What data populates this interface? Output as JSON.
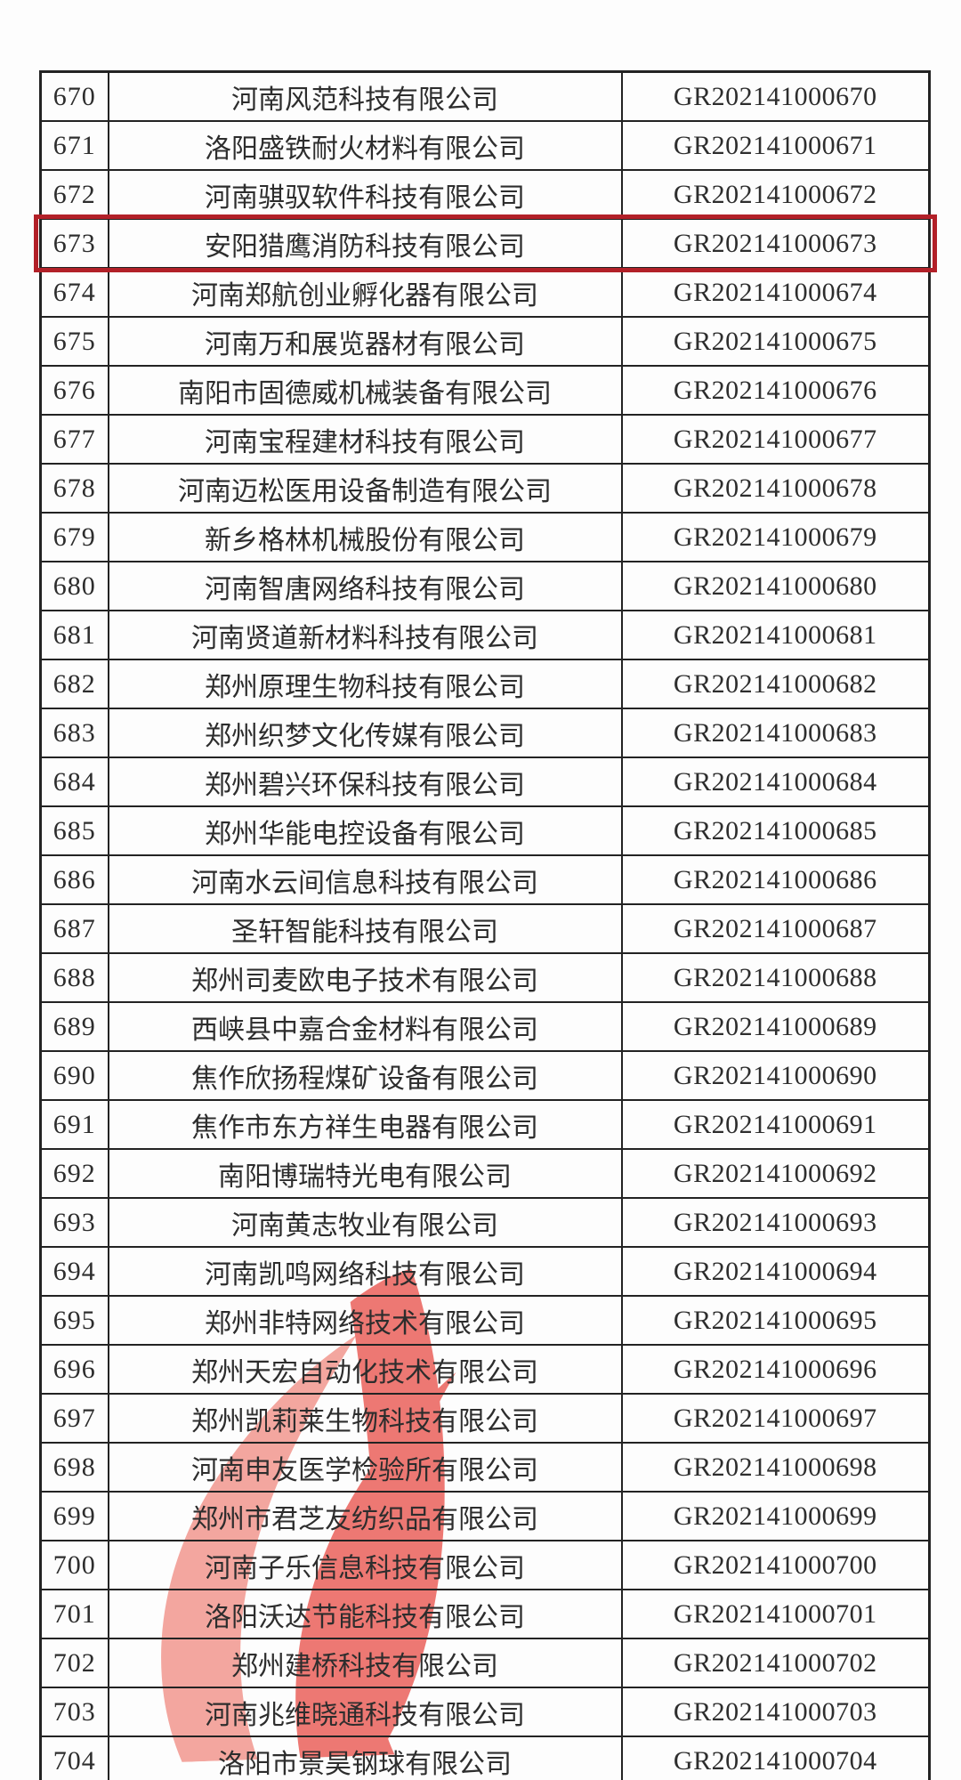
{
  "table": {
    "columns": [
      "index",
      "company",
      "certificate_no"
    ],
    "rows": [
      {
        "index": "670",
        "company": "河南风范科技有限公司",
        "cert": "GR202141000670"
      },
      {
        "index": "671",
        "company": "洛阳盛铁耐火材料有限公司",
        "cert": "GR202141000671"
      },
      {
        "index": "672",
        "company": "河南骐驭软件科技有限公司",
        "cert": "GR202141000672"
      },
      {
        "index": "673",
        "company": "安阳猎鹰消防科技有限公司",
        "cert": "GR202141000673"
      },
      {
        "index": "674",
        "company": "河南郑航创业孵化器有限公司",
        "cert": "GR202141000674"
      },
      {
        "index": "675",
        "company": "河南万和展览器材有限公司",
        "cert": "GR202141000675"
      },
      {
        "index": "676",
        "company": "南阳市固德威机械装备有限公司",
        "cert": "GR202141000676"
      },
      {
        "index": "677",
        "company": "河南宝程建材科技有限公司",
        "cert": "GR202141000677"
      },
      {
        "index": "678",
        "company": "河南迈松医用设备制造有限公司",
        "cert": "GR202141000678"
      },
      {
        "index": "679",
        "company": "新乡格林机械股份有限公司",
        "cert": "GR202141000679"
      },
      {
        "index": "680",
        "company": "河南智唐网络科技有限公司",
        "cert": "GR202141000680"
      },
      {
        "index": "681",
        "company": "河南贤道新材料科技有限公司",
        "cert": "GR202141000681"
      },
      {
        "index": "682",
        "company": "郑州原理生物科技有限公司",
        "cert": "GR202141000682"
      },
      {
        "index": "683",
        "company": "郑州织梦文化传媒有限公司",
        "cert": "GR202141000683"
      },
      {
        "index": "684",
        "company": "郑州碧兴环保科技有限公司",
        "cert": "GR202141000684"
      },
      {
        "index": "685",
        "company": "郑州华能电控设备有限公司",
        "cert": "GR202141000685"
      },
      {
        "index": "686",
        "company": "河南水云间信息科技有限公司",
        "cert": "GR202141000686"
      },
      {
        "index": "687",
        "company": "圣轩智能科技有限公司",
        "cert": "GR202141000687"
      },
      {
        "index": "688",
        "company": "郑州司麦欧电子技术有限公司",
        "cert": "GR202141000688"
      },
      {
        "index": "689",
        "company": "西峡县中嘉合金材料有限公司",
        "cert": "GR202141000689"
      },
      {
        "index": "690",
        "company": "焦作欣扬程煤矿设备有限公司",
        "cert": "GR202141000690"
      },
      {
        "index": "691",
        "company": "焦作市东方祥生电器有限公司",
        "cert": "GR202141000691"
      },
      {
        "index": "692",
        "company": "南阳博瑞特光电有限公司",
        "cert": "GR202141000692"
      },
      {
        "index": "693",
        "company": "河南黄志牧业有限公司",
        "cert": "GR202141000693"
      },
      {
        "index": "694",
        "company": "河南凯鸣网络科技有限公司",
        "cert": "GR202141000694"
      },
      {
        "index": "695",
        "company": "郑州非特网络技术有限公司",
        "cert": "GR202141000695"
      },
      {
        "index": "696",
        "company": "郑州天宏自动化技术有限公司",
        "cert": "GR202141000696"
      },
      {
        "index": "697",
        "company": "郑州凯莉莱生物科技有限公司",
        "cert": "GR202141000697"
      },
      {
        "index": "698",
        "company": "河南申友医学检验所有限公司",
        "cert": "GR202141000698"
      },
      {
        "index": "699",
        "company": "郑州市君芝友纺织品有限公司",
        "cert": "GR202141000699"
      },
      {
        "index": "700",
        "company": "河南子乐信息科技有限公司",
        "cert": "GR202141000700"
      },
      {
        "index": "701",
        "company": "洛阳沃达节能科技有限公司",
        "cert": "GR202141000701"
      },
      {
        "index": "702",
        "company": "郑州建桥科技有限公司",
        "cert": "GR202141000702"
      },
      {
        "index": "703",
        "company": "河南兆维晓通科技有限公司",
        "cert": "GR202141000703"
      },
      {
        "index": "704",
        "company": "洛阳市景昊钢球有限公司",
        "cert": "GR202141000704"
      }
    ],
    "highlighted_index": "673"
  },
  "colors": {
    "highlight_border": "#b22028",
    "table_border": "#232323",
    "watermark_red": "#ea5c55",
    "watermark_red_light": "#f2938b"
  },
  "icons": {
    "watermark": "torch-flame-watermark"
  }
}
